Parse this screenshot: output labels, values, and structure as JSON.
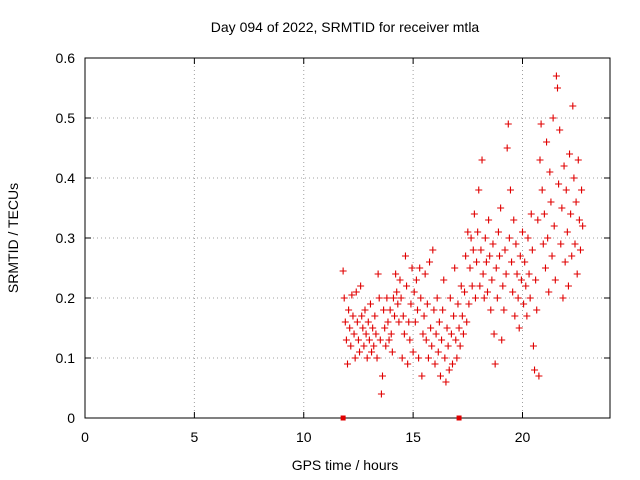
{
  "chart_data": {
    "type": "scatter",
    "title": "Day 094 of 2022, SRMTID for receiver mtla",
    "xlabel": "GPS time / hours",
    "ylabel": "SRMTID / TECUs",
    "xlim": [
      0,
      24
    ],
    "ylim": [
      0,
      0.6
    ],
    "x_ticks": [
      0,
      5,
      10,
      15,
      20
    ],
    "x_tick_labels": [
      "0",
      "5",
      "10",
      "15",
      "20"
    ],
    "y_ticks": [
      0,
      0.1,
      0.2,
      0.3,
      0.4,
      0.5,
      0.6
    ],
    "y_tick_labels": [
      "0",
      "0.1",
      "0.2",
      "0.3",
      "0.4",
      "0.5",
      "0.6"
    ],
    "grid": true,
    "marker": "+",
    "series_color": "#e00000",
    "zero_markers": [
      11.8,
      17.1
    ],
    "series": [
      {
        "name": "SRMTID",
        "points": [
          [
            11.8,
            0.245
          ],
          [
            11.85,
            0.2
          ],
          [
            11.9,
            0.16
          ],
          [
            11.95,
            0.13
          ],
          [
            12.0,
            0.09
          ],
          [
            12.05,
            0.18
          ],
          [
            12.1,
            0.15
          ],
          [
            12.15,
            0.12
          ],
          [
            12.2,
            0.205
          ],
          [
            12.25,
            0.17
          ],
          [
            12.3,
            0.14
          ],
          [
            12.35,
            0.1
          ],
          [
            12.4,
            0.21
          ],
          [
            12.45,
            0.16
          ],
          [
            12.5,
            0.13
          ],
          [
            12.55,
            0.11
          ],
          [
            12.6,
            0.22
          ],
          [
            12.65,
            0.17
          ],
          [
            12.7,
            0.15
          ],
          [
            12.75,
            0.12
          ],
          [
            12.8,
            0.18
          ],
          [
            12.85,
            0.14
          ],
          [
            12.9,
            0.1
          ],
          [
            12.95,
            0.16
          ],
          [
            13.0,
            0.13
          ],
          [
            13.05,
            0.19
          ],
          [
            13.1,
            0.11
          ],
          [
            13.15,
            0.15
          ],
          [
            13.2,
            0.12
          ],
          [
            13.25,
            0.17
          ],
          [
            13.3,
            0.14
          ],
          [
            13.35,
            0.1
          ],
          [
            13.4,
            0.24
          ],
          [
            13.45,
            0.2
          ],
          [
            13.5,
            0.13
          ],
          [
            13.55,
            0.04
          ],
          [
            13.6,
            0.07
          ],
          [
            13.65,
            0.18
          ],
          [
            13.7,
            0.15
          ],
          [
            13.75,
            0.12
          ],
          [
            13.8,
            0.2
          ],
          [
            13.85,
            0.16
          ],
          [
            13.9,
            0.13
          ],
          [
            13.95,
            0.18
          ],
          [
            14.0,
            0.14
          ],
          [
            14.05,
            0.11
          ],
          [
            14.1,
            0.2
          ],
          [
            14.15,
            0.17
          ],
          [
            14.2,
            0.24
          ],
          [
            14.25,
            0.21
          ],
          [
            14.3,
            0.19
          ],
          [
            14.35,
            0.16
          ],
          [
            14.4,
            0.23
          ],
          [
            14.45,
            0.2
          ],
          [
            14.5,
            0.1
          ],
          [
            14.55,
            0.17
          ],
          [
            14.6,
            0.14
          ],
          [
            14.65,
            0.27
          ],
          [
            14.7,
            0.22
          ],
          [
            14.75,
            0.09
          ],
          [
            14.8,
            0.16
          ],
          [
            14.85,
            0.13
          ],
          [
            14.9,
            0.19
          ],
          [
            14.95,
            0.25
          ],
          [
            15.0,
            0.11
          ],
          [
            15.05,
            0.21
          ],
          [
            15.1,
            0.16
          ],
          [
            15.15,
            0.23
          ],
          [
            15.2,
            0.18
          ],
          [
            15.25,
            0.1
          ],
          [
            15.3,
            0.25
          ],
          [
            15.35,
            0.2
          ],
          [
            15.4,
            0.07
          ],
          [
            15.45,
            0.14
          ],
          [
            15.5,
            0.17
          ],
          [
            15.55,
            0.24
          ],
          [
            15.6,
            0.13
          ],
          [
            15.65,
            0.19
          ],
          [
            15.7,
            0.1
          ],
          [
            15.75,
            0.26
          ],
          [
            15.8,
            0.15
          ],
          [
            15.85,
            0.12
          ],
          [
            15.9,
            0.28
          ],
          [
            15.95,
            0.18
          ],
          [
            16.0,
            0.09
          ],
          [
            16.05,
            0.14
          ],
          [
            16.1,
            0.2
          ],
          [
            16.15,
            0.11
          ],
          [
            16.2,
            0.16
          ],
          [
            16.25,
            0.07
          ],
          [
            16.3,
            0.13
          ],
          [
            16.35,
            0.18
          ],
          [
            16.4,
            0.23
          ],
          [
            16.45,
            0.1
          ],
          [
            16.5,
            0.06
          ],
          [
            16.55,
            0.15
          ],
          [
            16.6,
            0.12
          ],
          [
            16.65,
            0.08
          ],
          [
            16.7,
            0.2
          ],
          [
            16.75,
            0.14
          ],
          [
            16.8,
            0.09
          ],
          [
            16.85,
            0.17
          ],
          [
            16.9,
            0.25
          ],
          [
            16.95,
            0.13
          ],
          [
            17.0,
            0.1
          ],
          [
            17.05,
            0.19
          ],
          [
            17.1,
            0.15
          ],
          [
            17.15,
            0.12
          ],
          [
            17.2,
            0.22
          ],
          [
            17.25,
            0.17
          ],
          [
            17.3,
            0.14
          ],
          [
            17.35,
            0.21
          ],
          [
            17.4,
            0.27
          ],
          [
            17.45,
            0.16
          ],
          [
            17.5,
            0.31
          ],
          [
            17.55,
            0.19
          ],
          [
            17.6,
            0.25
          ],
          [
            17.65,
            0.3
          ],
          [
            17.7,
            0.22
          ],
          [
            17.75,
            0.28
          ],
          [
            17.8,
            0.34
          ],
          [
            17.85,
            0.2
          ],
          [
            17.9,
            0.26
          ],
          [
            17.95,
            0.31
          ],
          [
            18.0,
            0.38
          ],
          [
            18.05,
            0.22
          ],
          [
            18.1,
            0.28
          ],
          [
            18.15,
            0.43
          ],
          [
            18.2,
            0.24
          ],
          [
            18.25,
            0.2
          ],
          [
            18.3,
            0.3
          ],
          [
            18.35,
            0.26
          ],
          [
            18.4,
            0.21
          ],
          [
            18.45,
            0.33
          ],
          [
            18.5,
            0.27
          ],
          [
            18.55,
            0.18
          ],
          [
            18.6,
            0.23
          ],
          [
            18.65,
            0.29
          ],
          [
            18.7,
            0.14
          ],
          [
            18.75,
            0.09
          ],
          [
            18.8,
            0.25
          ],
          [
            18.85,
            0.2
          ],
          [
            18.9,
            0.31
          ],
          [
            18.95,
            0.27
          ],
          [
            19.0,
            0.35
          ],
          [
            19.05,
            0.13
          ],
          [
            19.1,
            0.22
          ],
          [
            19.15,
            0.18
          ],
          [
            19.2,
            0.28
          ],
          [
            19.25,
            0.24
          ],
          [
            19.3,
            0.45
          ],
          [
            19.35,
            0.49
          ],
          [
            19.4,
            0.3
          ],
          [
            19.45,
            0.38
          ],
          [
            19.5,
            0.26
          ],
          [
            19.55,
            0.21
          ],
          [
            19.6,
            0.33
          ],
          [
            19.65,
            0.17
          ],
          [
            19.7,
            0.29
          ],
          [
            19.75,
            0.24
          ],
          [
            19.8,
            0.2
          ],
          [
            19.85,
            0.15
          ],
          [
            19.9,
            0.27
          ],
          [
            19.95,
            0.23
          ],
          [
            20.0,
            0.31
          ],
          [
            20.05,
            0.19
          ],
          [
            20.1,
            0.26
          ],
          [
            20.15,
            0.22
          ],
          [
            20.2,
            0.17
          ],
          [
            20.25,
            0.3
          ],
          [
            20.3,
            0.24
          ],
          [
            20.35,
            0.2
          ],
          [
            20.4,
            0.34
          ],
          [
            20.45,
            0.28
          ],
          [
            20.5,
            0.12
          ],
          [
            20.55,
            0.08
          ],
          [
            20.6,
            0.23
          ],
          [
            20.65,
            0.18
          ],
          [
            20.7,
            0.33
          ],
          [
            20.75,
            0.07
          ],
          [
            20.8,
            0.43
          ],
          [
            20.85,
            0.49
          ],
          [
            20.9,
            0.38
          ],
          [
            20.95,
            0.29
          ],
          [
            21.0,
            0.34
          ],
          [
            21.05,
            0.25
          ],
          [
            21.1,
            0.46
          ],
          [
            21.15,
            0.3
          ],
          [
            21.2,
            0.21
          ],
          [
            21.25,
            0.41
          ],
          [
            21.3,
            0.36
          ],
          [
            21.35,
            0.27
          ],
          [
            21.4,
            0.5
          ],
          [
            21.45,
            0.32
          ],
          [
            21.5,
            0.23
          ],
          [
            21.55,
            0.57
          ],
          [
            21.6,
            0.55
          ],
          [
            21.65,
            0.39
          ],
          [
            21.7,
            0.48
          ],
          [
            21.75,
            0.29
          ],
          [
            21.8,
            0.35
          ],
          [
            21.85,
            0.2
          ],
          [
            21.9,
            0.42
          ],
          [
            21.95,
            0.26
          ],
          [
            22.0,
            0.38
          ],
          [
            22.05,
            0.31
          ],
          [
            22.1,
            0.22
          ],
          [
            22.15,
            0.44
          ],
          [
            22.2,
            0.34
          ],
          [
            22.25,
            0.27
          ],
          [
            22.3,
            0.52
          ],
          [
            22.35,
            0.4
          ],
          [
            22.4,
            0.29
          ],
          [
            22.45,
            0.36
          ],
          [
            22.5,
            0.24
          ],
          [
            22.55,
            0.43
          ],
          [
            22.6,
            0.33
          ],
          [
            22.65,
            0.28
          ],
          [
            22.7,
            0.38
          ],
          [
            22.75,
            0.32
          ]
        ]
      }
    ]
  }
}
